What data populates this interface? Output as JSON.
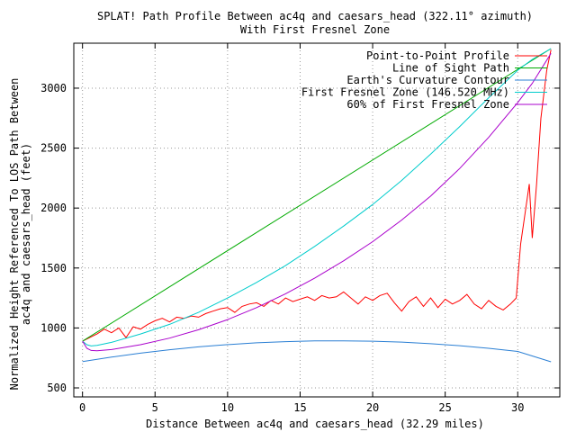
{
  "chart_data": {
    "type": "line",
    "title": "SPLAT! Path Profile Between ac4q and caesars_head (322.11° azimuth)",
    "subtitle": "With First Fresnel Zone",
    "xlabel": "Distance Between ac4q and caesars_head (32.29 miles)",
    "ylabel_line1": "Normalized Height Referenced To LOS Path Between",
    "ylabel_line2": "ac4q and caesars_head (feet)",
    "xlim": [
      -0.6,
      32.9
    ],
    "ylim": [
      425,
      3375
    ],
    "x_ticks": [
      0,
      5,
      10,
      15,
      20,
      25,
      30
    ],
    "y_ticks": [
      500,
      1000,
      1500,
      2000,
      2500,
      3000
    ],
    "grid": true,
    "legend_position": "top-right",
    "series": [
      {
        "name": "Point-to-Point Profile",
        "color": "#ff0000",
        "x": [
          0,
          0.5,
          1.0,
          1.5,
          2.0,
          2.5,
          3.0,
          3.5,
          4.0,
          4.5,
          5.0,
          5.5,
          6.0,
          6.5,
          7.0,
          7.5,
          8.0,
          8.5,
          9.0,
          9.5,
          10.0,
          10.5,
          11.0,
          11.5,
          12.0,
          12.5,
          13.0,
          13.5,
          14.0,
          14.5,
          15.0,
          15.5,
          16.0,
          16.5,
          17.0,
          17.5,
          18.0,
          18.5,
          19.0,
          19.5,
          20.0,
          20.5,
          21.0,
          21.5,
          22.0,
          22.5,
          23.0,
          23.5,
          24.0,
          24.5,
          25.0,
          25.5,
          26.0,
          26.5,
          27.0,
          27.5,
          28.0,
          28.5,
          29.0,
          29.5,
          29.9,
          30.2,
          30.5,
          30.8,
          31.0,
          31.3,
          31.6,
          32.0,
          32.29
        ],
        "y": [
          890,
          920,
          950,
          990,
          960,
          1000,
          920,
          1010,
          990,
          1030,
          1060,
          1080,
          1050,
          1090,
          1080,
          1100,
          1090,
          1120,
          1140,
          1160,
          1170,
          1130,
          1180,
          1200,
          1210,
          1180,
          1230,
          1200,
          1250,
          1220,
          1240,
          1260,
          1230,
          1270,
          1250,
          1260,
          1300,
          1250,
          1200,
          1260,
          1230,
          1270,
          1290,
          1210,
          1140,
          1220,
          1260,
          1180,
          1250,
          1170,
          1240,
          1200,
          1230,
          1280,
          1200,
          1160,
          1230,
          1180,
          1150,
          1200,
          1250,
          1700,
          1950,
          2200,
          1750,
          2200,
          2750,
          3150,
          3320
        ]
      },
      {
        "name": "Line of Sight Path",
        "color": "#00aa00",
        "x": [
          0,
          32.29
        ],
        "y": [
          890,
          3330
        ]
      },
      {
        "name": "Earth's Curvature Contour",
        "color": "#2a7fd4",
        "x": [
          0,
          2,
          4,
          6,
          8,
          10,
          12,
          14,
          16,
          18,
          20,
          22,
          24,
          26,
          28,
          30,
          32.29
        ],
        "y": [
          720,
          757,
          790,
          818,
          842,
          861,
          876,
          886,
          892,
          893,
          890,
          882,
          869,
          852,
          830,
          804,
          718
        ]
      },
      {
        "name": "First Fresnel Zone (146.520 MHz)",
        "color": "#00cccc",
        "x": [
          0,
          0.3,
          0.6,
          1,
          2,
          4,
          6,
          8,
          10,
          12,
          14,
          16,
          18,
          20,
          22,
          24,
          26,
          28,
          30,
          31,
          32.29
        ],
        "y": [
          890,
          860,
          850,
          855,
          880,
          950,
          1030,
          1130,
          1250,
          1380,
          1520,
          1680,
          1850,
          2030,
          2230,
          2450,
          2680,
          2920,
          3150,
          3240,
          3330
        ]
      },
      {
        "name": "60% of First Fresnel Zone",
        "color": "#aa00cc",
        "x": [
          0,
          0.3,
          0.6,
          1,
          2,
          4,
          6,
          8,
          10,
          12,
          14,
          16,
          18,
          20,
          22,
          24,
          26,
          28,
          30,
          31,
          32.29
        ],
        "y": [
          890,
          830,
          812,
          810,
          820,
          860,
          915,
          985,
          1070,
          1170,
          1285,
          1415,
          1560,
          1720,
          1900,
          2100,
          2330,
          2590,
          2880,
          3040,
          3290
        ]
      }
    ]
  }
}
